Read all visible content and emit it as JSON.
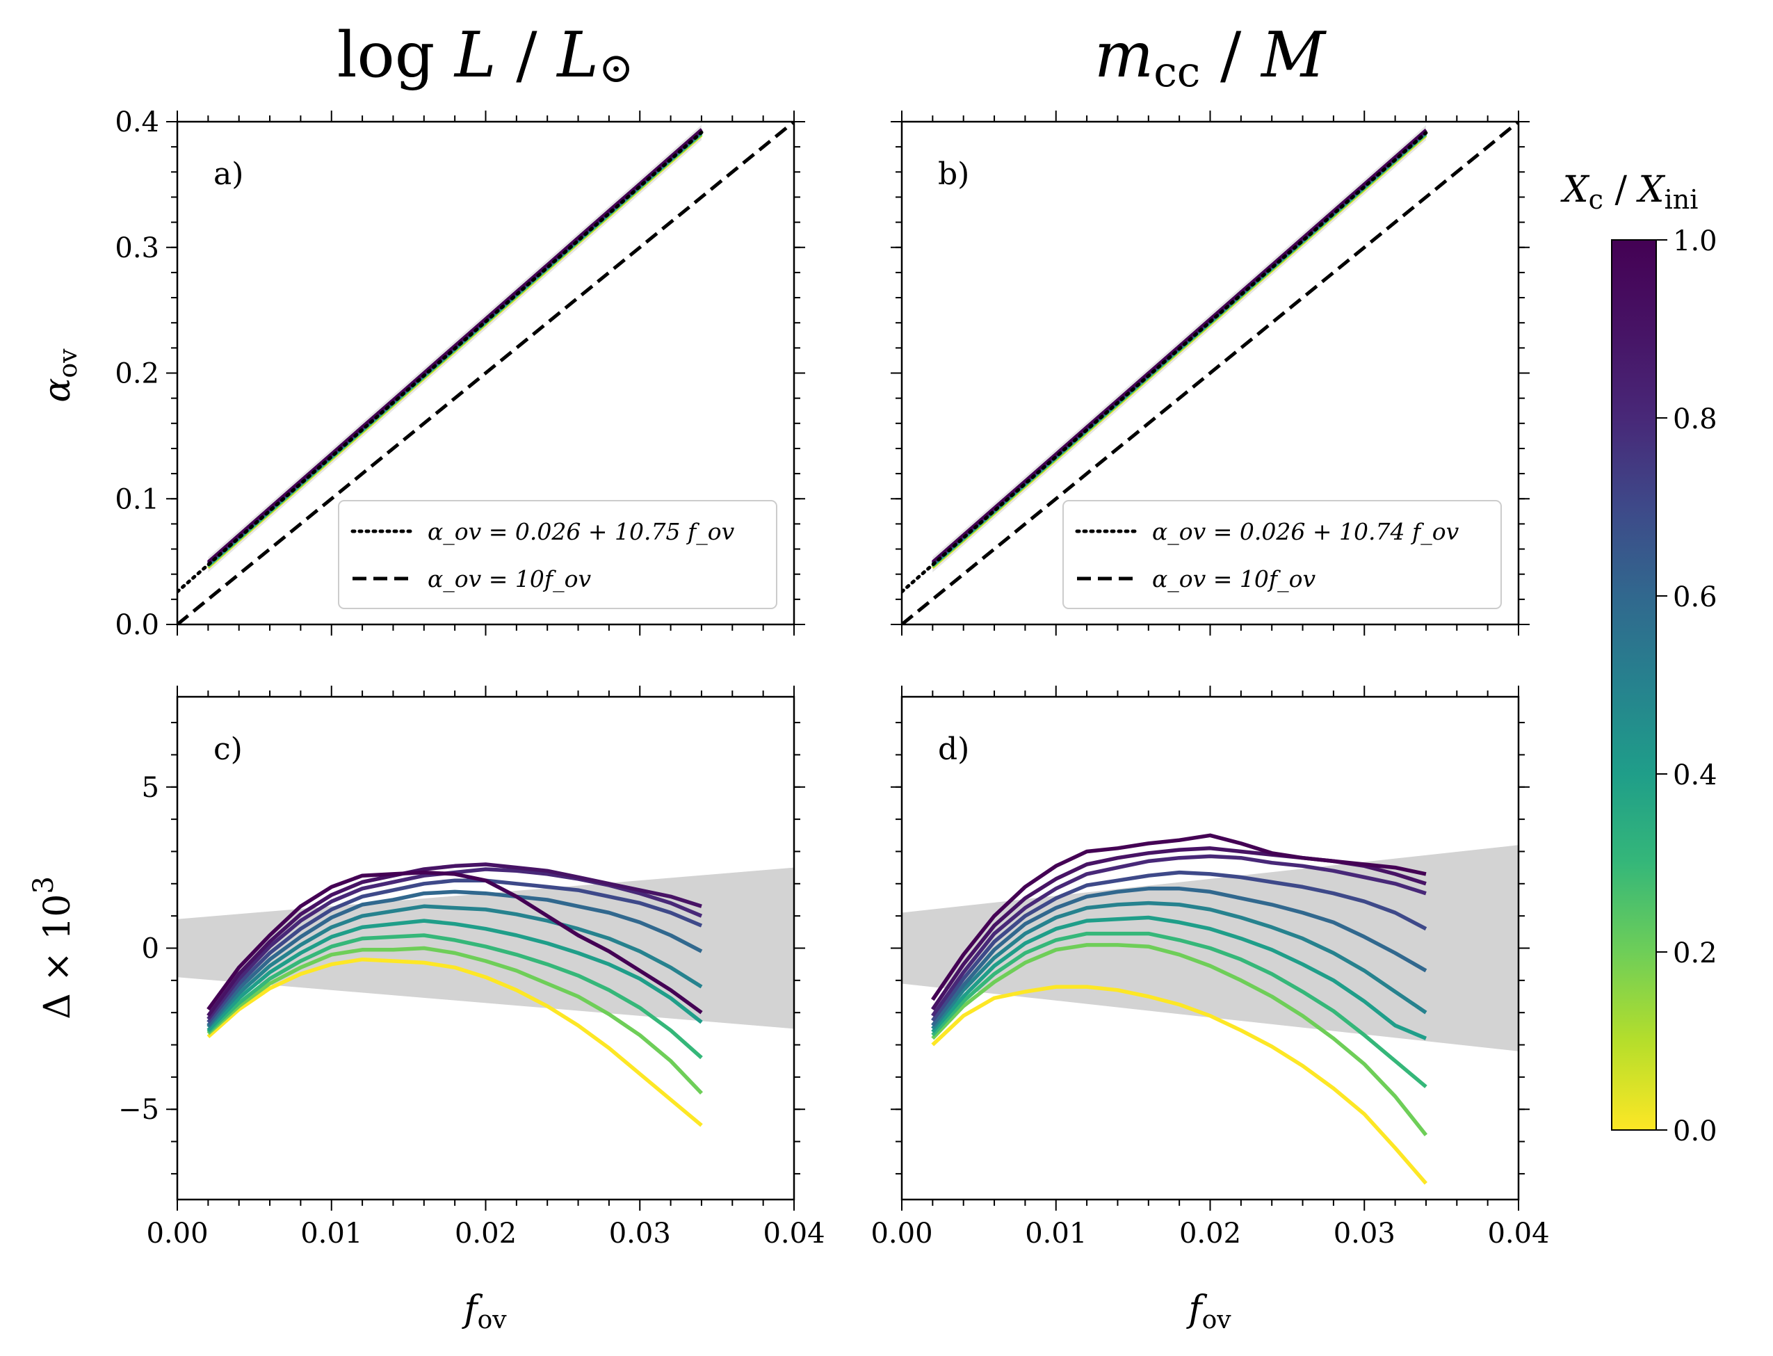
{
  "chart_data": {
    "type": "line",
    "column_titles": [
      "log L / L⊙",
      "m_cc / M"
    ],
    "xlabel": "f_ov",
    "xlim": [
      0.0,
      0.04
    ],
    "x_ticks": [
      0.0,
      0.01,
      0.02,
      0.03,
      0.04
    ],
    "x_tick_labels": [
      "0.00",
      "0.01",
      "0.02",
      "0.03",
      "0.04"
    ],
    "colorbar": {
      "label": "X_c / X_ini",
      "range": [
        0.0,
        1.0
      ],
      "ticks": [
        0.0,
        0.2,
        0.4,
        0.6,
        0.8,
        1.0
      ],
      "tick_labels": [
        "0.0",
        "0.2",
        "0.4",
        "0.6",
        "0.8",
        "1.0"
      ],
      "colormap": "viridis (reversed: 0 = yellow, 1 = purple)"
    },
    "top_panels": {
      "ylabel": "α_ov",
      "ylim": [
        0.0,
        0.4
      ],
      "y_ticks": [
        0.0,
        0.1,
        0.2,
        0.3,
        0.4
      ],
      "y_tick_labels": [
        "0.0",
        "0.1",
        "0.2",
        "0.3",
        "0.4"
      ],
      "panels": [
        {
          "tag": "a)",
          "fit": {
            "intercept": 0.026,
            "slope": 10.75
          },
          "legend": [
            "α_ov = 0.026 + 10.75 f_ov",
            "α_ov = 10f_ov"
          ]
        },
        {
          "tag": "b)",
          "fit": {
            "intercept": 0.026,
            "slope": 10.74
          },
          "legend": [
            "α_ov = 0.026 + 10.74 f_ov",
            "α_ov = 10f_ov"
          ]
        }
      ],
      "x": [
        0.002,
        0.004,
        0.006,
        0.008,
        0.01,
        0.012,
        0.014,
        0.016,
        0.018,
        0.02,
        0.022,
        0.024,
        0.026,
        0.028,
        0.03,
        0.032,
        0.034
      ]
    },
    "bottom_panels": {
      "ylabel": "Δ × 10³",
      "ylim": [
        -7.8,
        7.8
      ],
      "y_ticks": [
        -5,
        0,
        5
      ],
      "y_tick_labels": [
        "−5",
        "0",
        "5"
      ],
      "x": [
        0.002,
        0.004,
        0.006,
        0.008,
        0.01,
        0.012,
        0.014,
        0.016,
        0.018,
        0.02,
        0.022,
        0.024,
        0.026,
        0.028,
        0.03,
        0.032,
        0.034
      ],
      "panels": [
        {
          "tag": "c)",
          "band": {
            "upper": [
              0.9,
              2.5
            ],
            "lower": [
              -0.9,
              -2.5
            ]
          },
          "series": [
            {
              "xc": 1.0,
              "values": [
                -1.9,
                -0.6,
                0.4,
                1.3,
                1.9,
                2.25,
                2.3,
                2.35,
                2.3,
                2.1,
                1.6,
                1.0,
                0.4,
                -0.1,
                -0.7,
                -1.3,
                -2.0
              ]
            },
            {
              "xc": 0.9,
              "values": [
                -2.1,
                -0.8,
                0.2,
                1.05,
                1.65,
                2.05,
                2.25,
                2.45,
                2.55,
                2.6,
                2.5,
                2.4,
                2.2,
                2.0,
                1.8,
                1.6,
                1.3
              ]
            },
            {
              "xc": 0.8,
              "values": [
                -2.2,
                -0.95,
                0.05,
                0.85,
                1.45,
                1.85,
                2.05,
                2.25,
                2.35,
                2.45,
                2.4,
                2.3,
                2.15,
                1.95,
                1.7,
                1.4,
                1.0
              ]
            },
            {
              "xc": 0.7,
              "values": [
                -2.3,
                -1.1,
                -0.15,
                0.6,
                1.2,
                1.6,
                1.8,
                2.0,
                2.1,
                2.1,
                2.0,
                1.9,
                1.8,
                1.6,
                1.4,
                1.1,
                0.7
              ]
            },
            {
              "xc": 0.6,
              "values": [
                -2.4,
                -1.25,
                -0.35,
                0.35,
                0.95,
                1.35,
                1.5,
                1.7,
                1.75,
                1.7,
                1.6,
                1.5,
                1.3,
                1.1,
                0.8,
                0.4,
                -0.1
              ]
            },
            {
              "xc": 0.5,
              "values": [
                -2.45,
                -1.4,
                -0.55,
                0.1,
                0.65,
                1.0,
                1.15,
                1.3,
                1.25,
                1.2,
                1.05,
                0.85,
                0.6,
                0.3,
                -0.1,
                -0.6,
                -1.2
              ]
            },
            {
              "xc": 0.4,
              "values": [
                -2.55,
                -1.55,
                -0.75,
                -0.15,
                0.35,
                0.65,
                0.75,
                0.85,
                0.75,
                0.6,
                0.4,
                0.15,
                -0.15,
                -0.5,
                -0.95,
                -1.55,
                -2.3
              ]
            },
            {
              "xc": 0.3,
              "values": [
                -2.6,
                -1.7,
                -0.95,
                -0.4,
                0.05,
                0.3,
                0.35,
                0.4,
                0.25,
                0.05,
                -0.2,
                -0.5,
                -0.85,
                -1.3,
                -1.85,
                -2.55,
                -3.4
              ]
            },
            {
              "xc": 0.2,
              "values": [
                -2.65,
                -1.8,
                -1.1,
                -0.6,
                -0.2,
                -0.05,
                -0.05,
                0.0,
                -0.15,
                -0.4,
                -0.7,
                -1.1,
                -1.5,
                -2.05,
                -2.7,
                -3.5,
                -4.5
              ]
            },
            {
              "xc": 0.0,
              "values": [
                -2.75,
                -1.9,
                -1.25,
                -0.8,
                -0.5,
                -0.35,
                -0.4,
                -0.45,
                -0.6,
                -0.9,
                -1.3,
                -1.8,
                -2.4,
                -3.1,
                -3.9,
                -4.7,
                -5.5
              ]
            }
          ]
        },
        {
          "tag": "d)",
          "band": {
            "upper": [
              1.1,
              3.2
            ],
            "lower": [
              -1.1,
              -3.2
            ]
          },
          "series": [
            {
              "xc": 1.0,
              "values": [
                -1.6,
                -0.2,
                1.0,
                1.9,
                2.55,
                3.0,
                3.1,
                3.25,
                3.35,
                3.5,
                3.25,
                2.95,
                2.8,
                2.7,
                2.6,
                2.5,
                2.3
              ]
            },
            {
              "xc": 0.9,
              "values": [
                -1.9,
                -0.5,
                0.7,
                1.55,
                2.15,
                2.6,
                2.8,
                2.95,
                3.05,
                3.1,
                3.0,
                2.9,
                2.8,
                2.7,
                2.55,
                2.3,
                2.0
              ]
            },
            {
              "xc": 0.8,
              "values": [
                -2.1,
                -0.75,
                0.45,
                1.25,
                1.85,
                2.3,
                2.5,
                2.7,
                2.8,
                2.85,
                2.8,
                2.65,
                2.55,
                2.4,
                2.2,
                2.0,
                1.7
              ]
            },
            {
              "xc": 0.7,
              "values": [
                -2.25,
                -0.95,
                0.2,
                1.0,
                1.55,
                1.95,
                2.1,
                2.25,
                2.35,
                2.3,
                2.2,
                2.05,
                1.9,
                1.7,
                1.45,
                1.1,
                0.6
              ]
            },
            {
              "xc": 0.6,
              "values": [
                -2.4,
                -1.15,
                -0.05,
                0.75,
                1.25,
                1.6,
                1.75,
                1.85,
                1.85,
                1.75,
                1.55,
                1.35,
                1.1,
                0.8,
                0.35,
                -0.15,
                -0.7
              ]
            },
            {
              "xc": 0.5,
              "values": [
                -2.5,
                -1.3,
                -0.3,
                0.45,
                0.95,
                1.25,
                1.35,
                1.4,
                1.35,
                1.2,
                0.95,
                0.65,
                0.3,
                -0.15,
                -0.7,
                -1.35,
                -2.0
              ]
            },
            {
              "xc": 0.4,
              "values": [
                -2.6,
                -1.5,
                -0.55,
                0.15,
                0.6,
                0.85,
                0.9,
                0.95,
                0.8,
                0.6,
                0.3,
                -0.05,
                -0.5,
                -1.0,
                -1.65,
                -2.4,
                -2.8
              ]
            },
            {
              "xc": 0.3,
              "values": [
                -2.7,
                -1.65,
                -0.8,
                -0.15,
                0.25,
                0.45,
                0.45,
                0.45,
                0.25,
                0.0,
                -0.35,
                -0.8,
                -1.35,
                -1.95,
                -2.7,
                -3.5,
                -4.3
              ]
            },
            {
              "xc": 0.2,
              "values": [
                -2.8,
                -1.8,
                -1.05,
                -0.45,
                -0.05,
                0.1,
                0.1,
                0.05,
                -0.2,
                -0.55,
                -1.0,
                -1.5,
                -2.1,
                -2.8,
                -3.6,
                -4.6,
                -5.8
              ]
            },
            {
              "xc": 0.0,
              "values": [
                -3.0,
                -2.1,
                -1.55,
                -1.35,
                -1.2,
                -1.2,
                -1.3,
                -1.5,
                -1.75,
                -2.1,
                -2.55,
                -3.05,
                -3.65,
                -4.35,
                -5.15,
                -6.2,
                -7.3
              ]
            }
          ]
        }
      ]
    }
  }
}
